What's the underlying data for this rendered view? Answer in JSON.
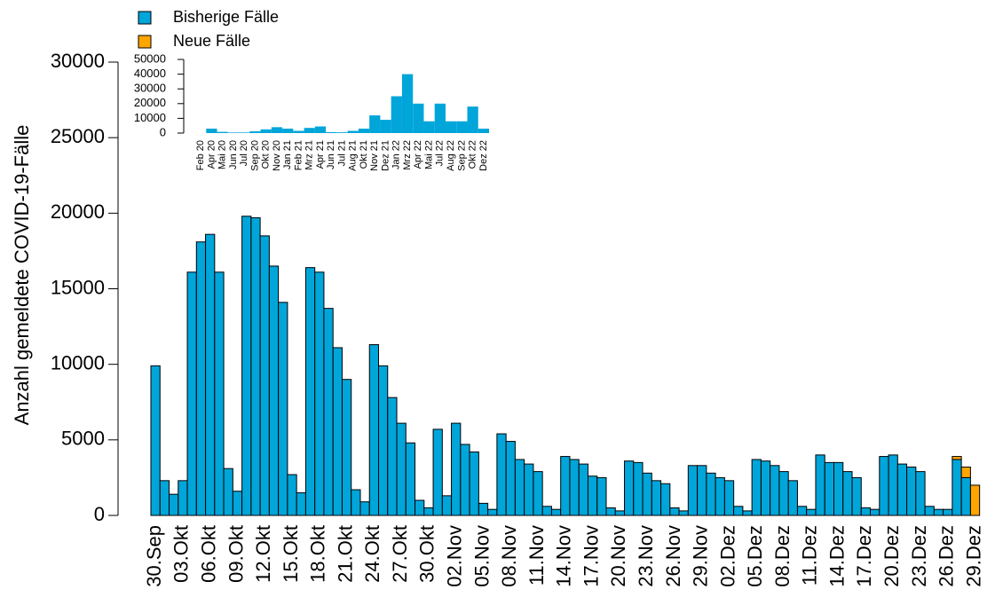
{
  "chart_data": [
    {
      "type": "bar",
      "stacked": true,
      "y_label": "Anzahl gemeldete COVID-19-Fälle",
      "categories": [
        "30.Sep",
        null,
        null,
        "03.Okt",
        null,
        null,
        "06.Okt",
        null,
        null,
        "09.Okt",
        null,
        null,
        "12.Okt",
        null,
        null,
        "15.Okt",
        null,
        null,
        "18.Okt",
        null,
        null,
        "21.Okt",
        null,
        null,
        "24.Okt",
        null,
        null,
        "27.Okt",
        null,
        null,
        "30.Okt",
        null,
        null,
        "02.Nov",
        null,
        null,
        "05.Nov",
        null,
        null,
        "08.Nov",
        null,
        null,
        "11.Nov",
        null,
        null,
        "14.Nov",
        null,
        null,
        "17.Nov",
        null,
        null,
        "20.Nov",
        null,
        null,
        "23.Nov",
        null,
        null,
        "26.Nov",
        null,
        null,
        "29.Nov",
        null,
        null,
        "02.Dez",
        null,
        null,
        "05.Dez",
        null,
        null,
        "08.Dez",
        null,
        null,
        "11.Dez",
        null,
        null,
        "14.Dez",
        null,
        null,
        "17.Dez",
        null,
        null,
        "20.Dez",
        null,
        null,
        "23.Dez",
        null,
        null,
        "26.Dez",
        null,
        null,
        "29.Dez"
      ],
      "series": [
        {
          "name": "Bisherige Fälle",
          "color": "#00a5d9",
          "values": [
            9900,
            2300,
            1400,
            2300,
            16100,
            18100,
            18600,
            16100,
            3100,
            1600,
            19800,
            19700,
            18500,
            16500,
            14100,
            2700,
            1500,
            16400,
            16100,
            13700,
            11100,
            9000,
            1700,
            900,
            11300,
            9900,
            7800,
            6100,
            4800,
            1000,
            500,
            5700,
            1300,
            6100,
            4700,
            4200,
            800,
            400,
            5400,
            4900,
            3700,
            3400,
            2900,
            600,
            400,
            3900,
            3700,
            3400,
            2600,
            2500,
            500,
            300,
            3600,
            3500,
            2800,
            2300,
            2100,
            500,
            300,
            3300,
            3300,
            2800,
            2500,
            2300,
            600,
            300,
            3700,
            3600,
            3300,
            2900,
            2300,
            600,
            400,
            4000,
            3500,
            3500,
            2900,
            2500,
            500,
            400,
            3900,
            4000,
            3400,
            3200,
            2900,
            600,
            400,
            400,
            3700,
            2500,
            0
          ]
        },
        {
          "name": "Neue Fälle",
          "color": "#ffa500",
          "values": [
            0,
            0,
            0,
            0,
            0,
            0,
            0,
            0,
            0,
            0,
            0,
            0,
            0,
            0,
            0,
            0,
            0,
            0,
            0,
            0,
            0,
            0,
            0,
            0,
            0,
            0,
            0,
            0,
            0,
            0,
            0,
            0,
            0,
            0,
            0,
            0,
            0,
            0,
            0,
            0,
            0,
            0,
            0,
            0,
            0,
            0,
            0,
            0,
            0,
            0,
            0,
            0,
            0,
            0,
            0,
            0,
            0,
            0,
            0,
            0,
            0,
            0,
            0,
            0,
            0,
            0,
            0,
            0,
            0,
            0,
            0,
            0,
            0,
            0,
            0,
            0,
            0,
            0,
            0,
            0,
            0,
            0,
            0,
            0,
            0,
            0,
            0,
            0,
            200,
            700,
            2000
          ]
        }
      ],
      "ylim": [
        0,
        30000
      ],
      "yticks": [
        0,
        5000,
        10000,
        15000,
        20000,
        25000,
        30000
      ],
      "grid": false
    },
    {
      "type": "bar",
      "categories": [
        "Feb 20",
        "Apr 20",
        "Mai 20",
        "Jun 20",
        "Jul 20",
        "Sep 20",
        "Okt 20",
        "Nov 20",
        "Jan 21",
        "Feb 21",
        "Mrz 21",
        "Apr 21",
        "Jun 21",
        "Jul 21",
        "Aug 21",
        "Okt 21",
        "Nov 21",
        "Dez 21",
        "Jan 22",
        "Mrz 22",
        "Apr 22",
        "Mai 22",
        "Jul 22",
        "Aug 22",
        "Sep 22",
        "Okt 22",
        "Dez 22"
      ],
      "values": [
        0,
        3000,
        800,
        400,
        400,
        1200,
        2500,
        4000,
        3000,
        1500,
        3500,
        4500,
        600,
        500,
        1500,
        3000,
        12000,
        9000,
        25000,
        40000,
        20000,
        8000,
        20000,
        8000,
        8000,
        18000,
        3000
      ],
      "color": "#00a5d9",
      "ylim": [
        0,
        50000
      ],
      "yticks": [
        0,
        10000,
        20000,
        30000,
        40000,
        50000
      ]
    }
  ]
}
